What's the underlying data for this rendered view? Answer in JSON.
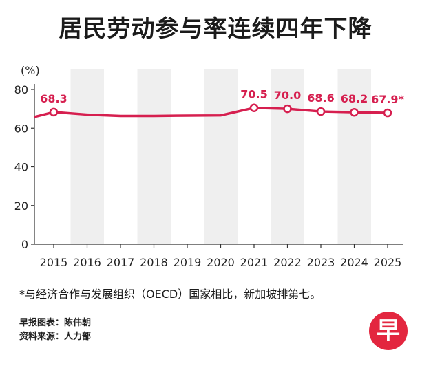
{
  "header": {
    "title": "居民劳动参与率连续四年下降"
  },
  "chart_data": {
    "type": "line",
    "title": "居民劳动参与率连续四年下降",
    "ylabel": "(%)",
    "xlabel": "",
    "ylim": [
      0,
      80
    ],
    "yticks": [
      0,
      20,
      40,
      60,
      80
    ],
    "x": [
      "2015",
      "2016",
      "2017",
      "2018",
      "2019",
      "2020",
      "2021",
      "2022",
      "2023",
      "2024",
      "2025"
    ],
    "values": [
      68.3,
      67.0,
      66.3,
      66.3,
      66.5,
      66.6,
      70.5,
      70.0,
      68.6,
      68.2,
      67.9
    ],
    "labels": [
      "68.3",
      "",
      "",
      "",
      "",
      "",
      "70.5",
      "70.0",
      "68.6",
      "68.2",
      "67.9*"
    ],
    "series_color": "#d61f4f",
    "band_color": "#efefef",
    "grid": false
  },
  "footer": {
    "note": "*与经济合作与发展组织（OECD）国家相比，新加坡排第七。",
    "credit_chart": "早报图表：陈伟朝",
    "credit_source": "资料来源：人力部",
    "logo_text": "早"
  }
}
